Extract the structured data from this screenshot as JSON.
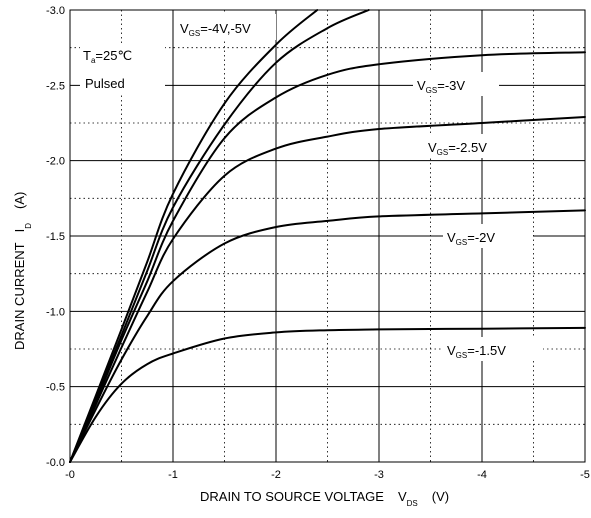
{
  "chart_data": {
    "type": "line",
    "xlabel": "DRAIN TO SOURCE VOLTAGE",
    "xlabel_symbol": "V",
    "xlabel_sub": "DS",
    "xlabel_unit": "(V)",
    "ylabel": "DRAIN CURRENT",
    "ylabel_symbol": "I",
    "ylabel_sub": "D",
    "ylabel_unit": "(A)",
    "xlim": [
      0,
      -5
    ],
    "ylim": [
      0,
      -3.0
    ],
    "x_ticks": [
      "-0",
      "-1",
      "-2",
      "-3",
      "-4",
      "-5"
    ],
    "y_ticks": [
      "-0.0",
      "-0.5",
      "-1.0",
      "-1.5",
      "-2.0",
      "-2.5",
      "-3.0"
    ],
    "grid": "major solid, minor dotted",
    "conditions": {
      "ta_symbol": "T",
      "ta_sub": "a",
      "ta_value": "=25℃",
      "pulsed": "Pulsed"
    },
    "series": [
      {
        "name": "VGS=-1.5V",
        "label_sub": "GS",
        "label_value": "=-1.5V",
        "x": [
          0,
          -0.25,
          -0.5,
          -0.75,
          -1,
          -1.5,
          -2,
          -2.5,
          -3,
          -4,
          -5
        ],
        "y": [
          0,
          -0.3,
          -0.52,
          -0.65,
          -0.72,
          -0.82,
          -0.86,
          -0.875,
          -0.88,
          -0.885,
          -0.89
        ]
      },
      {
        "name": "VGS=-2V",
        "label_sub": "GS",
        "label_value": "=-2V",
        "x": [
          0,
          -0.25,
          -0.5,
          -0.75,
          -1,
          -1.5,
          -2,
          -2.5,
          -3,
          -4,
          -5
        ],
        "y": [
          0,
          -0.35,
          -0.68,
          -0.97,
          -1.2,
          -1.45,
          -1.56,
          -1.6,
          -1.63,
          -1.65,
          -1.67
        ]
      },
      {
        "name": "VGS=-2.5V",
        "label_sub": "GS",
        "label_value": "=-2.5V",
        "x": [
          0,
          -0.25,
          -0.5,
          -0.75,
          -1,
          -1.5,
          -2,
          -2.5,
          -3,
          -4,
          -5
        ],
        "y": [
          0,
          -0.38,
          -0.76,
          -1.13,
          -1.48,
          -1.9,
          -2.08,
          -2.16,
          -2.21,
          -2.25,
          -2.29
        ]
      },
      {
        "name": "VGS=-3V",
        "label_sub": "GS",
        "label_value": "=-3V",
        "x": [
          0,
          -0.25,
          -0.5,
          -0.75,
          -1,
          -1.5,
          -2,
          -2.5,
          -3,
          -4,
          -5
        ],
        "y": [
          0,
          -0.4,
          -0.81,
          -1.2,
          -1.6,
          -2.15,
          -2.42,
          -2.57,
          -2.64,
          -2.7,
          -2.72
        ]
      },
      {
        "name": "VGS=-4V",
        "label_sub": "GS",
        "label_value": "=-4V,-5V",
        "x": [
          0,
          -0.25,
          -0.5,
          -0.75,
          -1,
          -1.5,
          -2,
          -2.5,
          -2.9
        ],
        "y": [
          0,
          -0.42,
          -0.84,
          -1.27,
          -1.69,
          -2.24,
          -2.65,
          -2.88,
          -3.0
        ]
      },
      {
        "name": "VGS=-5V",
        "label_sub": "",
        "x": [
          0,
          -0.25,
          -0.5,
          -0.75,
          -1,
          -1.5,
          -2,
          -2.4
        ],
        "y": [
          0,
          -0.44,
          -0.88,
          -1.33,
          -1.78,
          -2.38,
          -2.77,
          -3.0
        ]
      }
    ]
  }
}
